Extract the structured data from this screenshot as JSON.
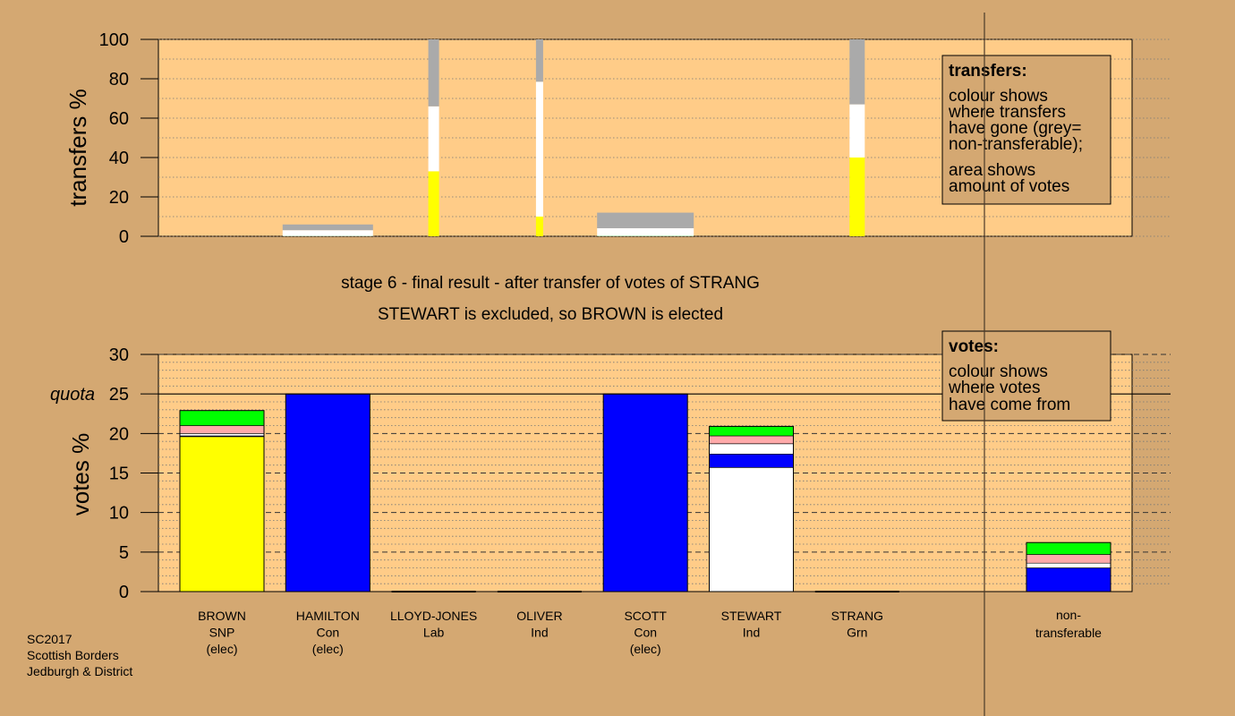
{
  "colors": {
    "background": "#d4a872",
    "plot": "#ffcc88",
    "legend_box": "#d4a872",
    "SNP": "#ffff00",
    "Con": "#0000ff",
    "Ind": "#ffffff",
    "Lab": "#ffaaaa",
    "Grn": "#00ff00",
    "nontransferable": "#aaaaaa"
  },
  "header": {
    "stage": "stage 6 - final result - after transfer of votes of STRANG",
    "outcome": "STEWART is excluded, so BROWN is elected"
  },
  "footer": {
    "line1": "SC2017",
    "line2": "Scottish Borders",
    "line3": "Jedburgh & District"
  },
  "legends": {
    "transfers": {
      "title": "transfers:",
      "lines": [
        "colour shows",
        "where transfers",
        "have gone (grey=",
        "non-transferable);"
      ],
      "lines2": [
        "area shows",
        "amount of votes"
      ]
    },
    "votes": {
      "title": "votes:",
      "lines": [
        "colour shows",
        "where votes",
        "have come from"
      ]
    }
  },
  "chart_data": [
    {
      "type": "bar",
      "ylabel": "transfers %",
      "ylim": [
        0,
        100
      ],
      "yticks": [
        "0",
        "20",
        "40",
        "60",
        "80",
        "100"
      ],
      "grid": "dotted",
      "columns": [
        {
          "candidate": "BROWN",
          "width_share": 0,
          "segments": []
        },
        {
          "candidate": "HAMILTON",
          "width_share": 6.0,
          "segments": [
            {
              "to": "Grn",
              "value": 1.5,
              "color": "#00ff00"
            },
            {
              "to": "Ind",
              "value": 50,
              "color": "#ffffff"
            },
            {
              "to": "non-transferable",
              "value": 48.5,
              "color": "#aaaaaa"
            }
          ]
        },
        {
          "candidate": "LLOYD-JONES",
          "width_share": 100,
          "segments": [
            {
              "to": "SNP",
              "value": 33,
              "color": "#ffff00"
            },
            {
              "to": "Ind",
              "value": 33,
              "color": "#ffffff"
            },
            {
              "to": "non-transferable",
              "value": 34,
              "color": "#aaaaaa"
            }
          ]
        },
        {
          "candidate": "OLIVER",
          "width_share": 100,
          "segments": [
            {
              "to": "SNP",
              "value": 10,
              "color": "#ffff00"
            },
            {
              "to": "Ind",
              "value": 68.5,
              "color": "#ffffff"
            },
            {
              "to": "non-transferable",
              "value": 21.5,
              "color": "#aaaaaa"
            }
          ]
        },
        {
          "candidate": "SCOTT",
          "width_share": 12.0,
          "segments": [
            {
              "to": "Grn",
              "value": 1,
              "color": "#00ff00"
            },
            {
              "to": "Ind",
              "value": 33,
              "color": "#ffffff"
            },
            {
              "to": "non-transferable",
              "value": 66,
              "color": "#aaaaaa"
            }
          ]
        },
        {
          "candidate": "STEWART",
          "width_share": 0,
          "segments": []
        },
        {
          "candidate": "STRANG",
          "width_share": 100,
          "segments": [
            {
              "to": "SNP",
              "value": 40,
              "color": "#ffff00"
            },
            {
              "to": "Ind",
              "value": 27,
              "color": "#ffffff"
            },
            {
              "to": "non-transferable",
              "value": 33,
              "color": "#aaaaaa"
            }
          ]
        }
      ]
    },
    {
      "type": "bar",
      "ylabel": "votes %",
      "ylim": [
        0,
        30
      ],
      "yticks": [
        "0",
        "5",
        "10",
        "15",
        "20",
        "25",
        "30"
      ],
      "grid": "dashed",
      "quota": 25,
      "quota_label": "quota",
      "categories": [
        {
          "name": "BROWN",
          "party": "SNP",
          "status": "(elec)"
        },
        {
          "name": "HAMILTON",
          "party": "Con",
          "status": "(elec)"
        },
        {
          "name": "LLOYD-JONES",
          "party": "Lab",
          "status": ""
        },
        {
          "name": "OLIVER",
          "party": "Ind",
          "status": ""
        },
        {
          "name": "SCOTT",
          "party": "Con",
          "status": "(elec)"
        },
        {
          "name": "STEWART",
          "party": "Ind",
          "status": ""
        },
        {
          "name": "STRANG",
          "party": "Grn",
          "status": ""
        },
        {
          "name": "non-",
          "party": "transferable",
          "status": ""
        }
      ],
      "stacks": [
        [
          {
            "from": "SNP",
            "value": 19.6,
            "color": "#ffff00"
          },
          {
            "from": "Con",
            "value": 0.1,
            "color": "#0000ff"
          },
          {
            "from": "Ind",
            "value": 0.3,
            "color": "#ffffff"
          },
          {
            "from": "Lab",
            "value": 1.0,
            "color": "#ffaaaa"
          },
          {
            "from": "Grn",
            "value": 1.9,
            "color": "#00ff00"
          }
        ],
        [
          {
            "from": "Con",
            "value": 25.0,
            "color": "#0000ff"
          }
        ],
        [],
        [],
        [
          {
            "from": "Con",
            "value": 25.0,
            "color": "#0000ff"
          }
        ],
        [
          {
            "from": "Ind",
            "value": 15.7,
            "color": "#ffffff"
          },
          {
            "from": "Con",
            "value": 1.7,
            "color": "#0000ff"
          },
          {
            "from": "Ind",
            "value": 1.3,
            "color": "#ffffff"
          },
          {
            "from": "Lab",
            "value": 1.0,
            "color": "#ffaaaa"
          },
          {
            "from": "Grn",
            "value": 1.2,
            "color": "#00ff00"
          }
        ],
        [],
        [
          {
            "from": "Con",
            "value": 3.0,
            "color": "#0000ff"
          },
          {
            "from": "Ind",
            "value": 0.6,
            "color": "#ffffff"
          },
          {
            "from": "Lab",
            "value": 1.1,
            "color": "#ffaaaa"
          },
          {
            "from": "Grn",
            "value": 1.5,
            "color": "#00ff00"
          }
        ]
      ]
    }
  ]
}
